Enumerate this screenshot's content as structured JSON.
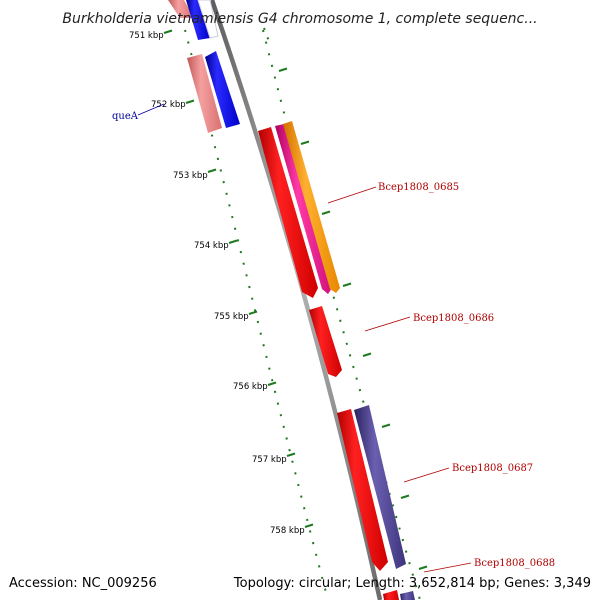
{
  "title": "Burkholderia vietnamiensis G4 chromosome 1, complete sequenc...",
  "footer": {
    "accession": "Accession: NC_009256",
    "summary": "Topology: circular; Length: 3,652,814 bp; Genes: 3,349"
  },
  "ticks": [
    "751 kbp",
    "752 kbp",
    "753 kbp",
    "754 kbp",
    "755 kbp",
    "756 kbp",
    "757 kbp",
    "758 kbp"
  ],
  "gene_labels": [
    "queA",
    "Bcep1808_0685",
    "Bcep1808_0686",
    "Bcep1808_0687",
    "Bcep1808_0688"
  ],
  "colors": {
    "backbone": "#8a8a8a",
    "tick_dots": "#1e7a1e",
    "gene_red": "#ee0000",
    "gene_blue": "#0000ee",
    "gene_salmon": "#e88080",
    "gene_magenta": "#ee1c8c",
    "gene_orange": "#ff9900",
    "gene_slate": "#4a3f8f",
    "label_forward": "#b00000",
    "label_reverse": "#000099"
  }
}
